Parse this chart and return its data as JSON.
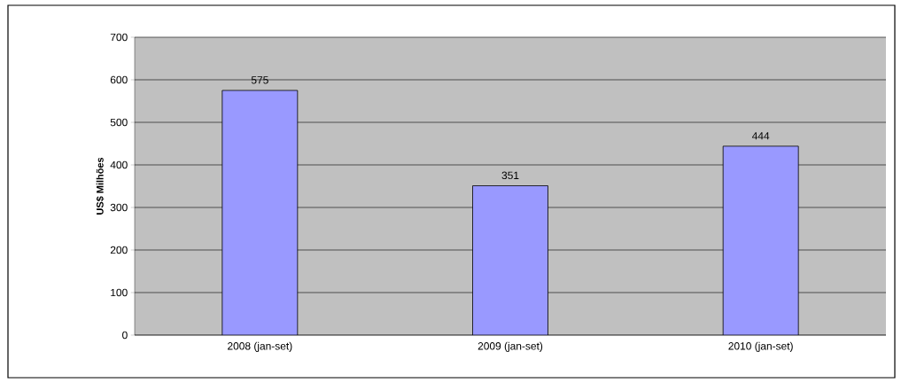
{
  "chart_data": {
    "type": "bar",
    "ylabel": "US$ Milhões",
    "categories": [
      "2008 (jan-set)",
      "2009 (jan-set)",
      "2010 (jan-set)"
    ],
    "values": [
      575,
      351,
      444
    ],
    "color": "#9999ff",
    "ylim": [
      0,
      700
    ],
    "yticks": [
      0,
      100,
      200,
      300,
      400,
      500,
      600,
      700
    ],
    "grid": "y",
    "data_labels": true
  }
}
